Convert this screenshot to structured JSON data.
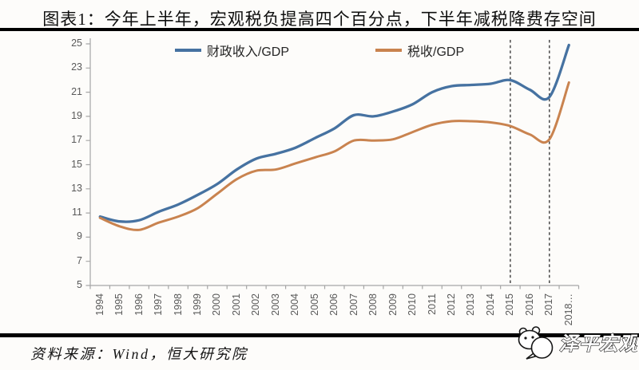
{
  "title": "图表1：今年上半年，宏观税负提高四个百分点，下半年减税降费存空间",
  "source_note": "资料来源：Wind，恒大研究院",
  "logo": {
    "icon": "panda-chat-icon",
    "text": "泽平宏观"
  },
  "colors": {
    "axis": "#a6a6a6",
    "tick_label": "#595959",
    "legend_text": "#262626",
    "dashed_line": "#3d3d3d",
    "rule": "#000000",
    "series_blue": "#4672a1",
    "series_orange": "#c9834f"
  },
  "chart_data": {
    "type": "line",
    "title": "图表1：今年上半年，宏观税负提高四个百分点，下半年减税降费存空间",
    "categories": [
      1994,
      1995,
      1996,
      1997,
      1998,
      1999,
      2000,
      2001,
      2002,
      2003,
      2004,
      2005,
      2006,
      2007,
      2008,
      2009,
      2010,
      2011,
      2012,
      2013,
      2014,
      2015,
      2016,
      2017,
      2018
    ],
    "series": [
      {
        "name": "财政收入/GDP",
        "color": "#4672a1",
        "values": [
          10.7,
          10.3,
          10.4,
          11.1,
          11.7,
          12.5,
          13.4,
          14.6,
          15.5,
          15.9,
          16.4,
          17.2,
          18.0,
          19.1,
          19.0,
          19.4,
          20.0,
          21.0,
          21.5,
          21.6,
          21.7,
          22.0,
          21.2,
          20.6,
          24.9
        ]
      },
      {
        "name": "税收/GDP",
        "color": "#c9834f",
        "values": [
          10.6,
          9.9,
          9.6,
          10.2,
          10.7,
          11.4,
          12.6,
          13.8,
          14.5,
          14.6,
          15.1,
          15.6,
          16.1,
          17.0,
          17.0,
          17.1,
          17.7,
          18.3,
          18.6,
          18.6,
          18.5,
          18.2,
          17.5,
          17.1,
          21.8
        ]
      }
    ],
    "xlabel": "",
    "ylabel": "",
    "ylim": [
      5,
      25
    ],
    "y_tick_step": 2,
    "grid": false,
    "legend_position": "top-center",
    "annotations": {
      "dashed_vlines_years": [
        2015,
        2017
      ],
      "last_x_label_dotted": true
    }
  }
}
